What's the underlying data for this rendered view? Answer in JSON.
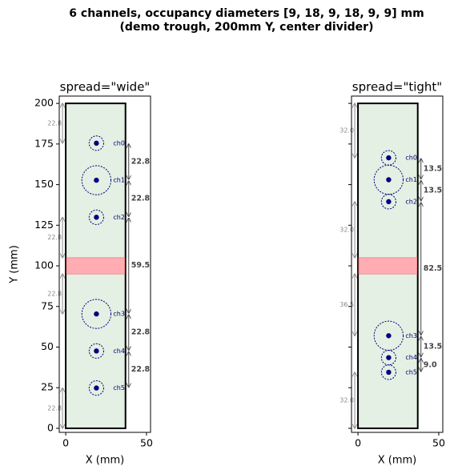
{
  "title": [
    "6 channels, occupancy diameters [9, 18, 9, 18, 9, 9] mm",
    "(demo trough, 200mm Y, center divider)"
  ],
  "chart_data": [
    {
      "type": "trough",
      "title": "spread=\"wide\"",
      "xlabel": "X (mm)",
      "ylabel": "Y (mm)",
      "xlim": [
        -4,
        52.5
      ],
      "ylim": [
        -2.5,
        204.5
      ],
      "xticks": [
        0,
        50
      ],
      "yticks": [
        0,
        25,
        50,
        75,
        100,
        125,
        150,
        175,
        200
      ],
      "show_ytick_labels": true,
      "trough": {
        "x": [
          0,
          37
        ],
        "y": [
          0,
          200
        ],
        "color": "#e3f0e3"
      },
      "divider": {
        "y": [
          95,
          105
        ],
        "color": "#ffadb3"
      },
      "channel_x": 19,
      "channel_color": "#000080",
      "channels": [
        {
          "name": "ch0",
          "y": 175.5,
          "diameter": 9
        },
        {
          "name": "ch1",
          "y": 152.7,
          "diameter": 18
        },
        {
          "name": "ch2",
          "y": 129.9,
          "diameter": 9
        },
        {
          "name": "ch3",
          "y": 70.4,
          "diameter": 18
        },
        {
          "name": "ch4",
          "y": 47.6,
          "diameter": 9
        },
        {
          "name": "ch5",
          "y": 24.8,
          "diameter": 9
        }
      ],
      "gaps": [
        22.8,
        22.8,
        59.5,
        22.8,
        22.8
      ],
      "edge_gaps": [
        22.8,
        22.8,
        22.8,
        22.8
      ]
    },
    {
      "type": "trough",
      "title": "spread=\"tight\"",
      "xlabel": "X (mm)",
      "xlim": [
        -4,
        52.5
      ],
      "ylim": [
        -2.5,
        204.5
      ],
      "xticks": [
        0,
        50
      ],
      "yticks": [
        0,
        25,
        50,
        75,
        100,
        125,
        150,
        175,
        200
      ],
      "show_ytick_labels": false,
      "trough": {
        "x": [
          0,
          37
        ],
        "y": [
          0,
          200
        ],
        "color": "#e3f0e3"
      },
      "divider": {
        "y": [
          95,
          105
        ],
        "color": "#ffadb3"
      },
      "channel_x": 19,
      "channel_color": "#000080",
      "channels": [
        {
          "name": "ch0",
          "y": 166.5,
          "diameter": 9
        },
        {
          "name": "ch1",
          "y": 153,
          "diameter": 18
        },
        {
          "name": "ch2",
          "y": 139.5,
          "diameter": 9
        },
        {
          "name": "ch3",
          "y": 57,
          "diameter": 18
        },
        {
          "name": "ch4",
          "y": 43.5,
          "diameter": 9
        },
        {
          "name": "ch5",
          "y": 34.5,
          "diameter": 9
        }
      ],
      "gaps": [
        13.5,
        13.5,
        82.5,
        13.5,
        {
          "value": 9,
          "label": "9.0"
        }
      ],
      "edge_gaps": [
        {
          "value": 32,
          "label": "32.0"
        },
        {
          "value": 32,
          "label": "32.0"
        },
        36.5,
        {
          "value": 32,
          "label": "32.0"
        }
      ]
    }
  ]
}
